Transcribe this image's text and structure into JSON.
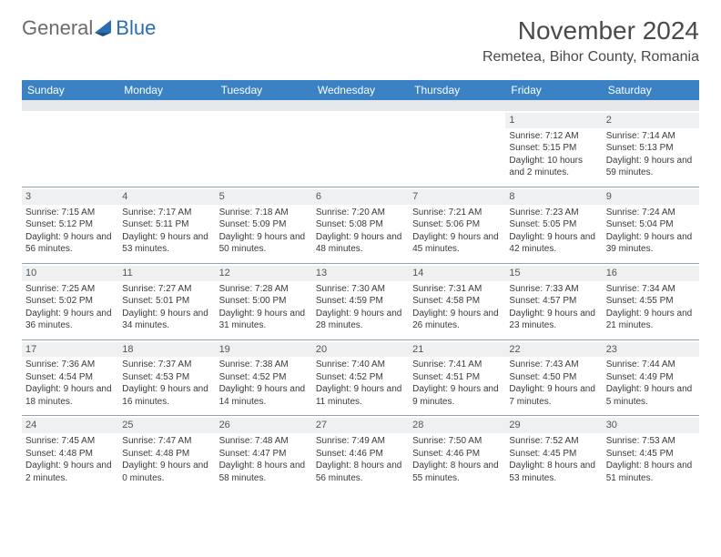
{
  "brand": {
    "part1": "General",
    "part2": "Blue",
    "color1": "#6b6b6b",
    "color2": "#2a6db0"
  },
  "title": "November 2024",
  "location": "Remetea, Bihor County, Romania",
  "header_bg": "#3b82c4",
  "header_fg": "#ffffff",
  "daynum_bg": "#eef0f2",
  "sep_color": "#8fa4b8",
  "weekdays": [
    "Sunday",
    "Monday",
    "Tuesday",
    "Wednesday",
    "Thursday",
    "Friday",
    "Saturday"
  ],
  "weeks": [
    [
      {
        "n": "",
        "lines": []
      },
      {
        "n": "",
        "lines": []
      },
      {
        "n": "",
        "lines": []
      },
      {
        "n": "",
        "lines": []
      },
      {
        "n": "",
        "lines": []
      },
      {
        "n": "1",
        "lines": [
          "Sunrise: 7:12 AM",
          "Sunset: 5:15 PM",
          "Daylight: 10 hours and 2 minutes."
        ]
      },
      {
        "n": "2",
        "lines": [
          "Sunrise: 7:14 AM",
          "Sunset: 5:13 PM",
          "Daylight: 9 hours and 59 minutes."
        ]
      }
    ],
    [
      {
        "n": "3",
        "lines": [
          "Sunrise: 7:15 AM",
          "Sunset: 5:12 PM",
          "Daylight: 9 hours and 56 minutes."
        ]
      },
      {
        "n": "4",
        "lines": [
          "Sunrise: 7:17 AM",
          "Sunset: 5:11 PM",
          "Daylight: 9 hours and 53 minutes."
        ]
      },
      {
        "n": "5",
        "lines": [
          "Sunrise: 7:18 AM",
          "Sunset: 5:09 PM",
          "Daylight: 9 hours and 50 minutes."
        ]
      },
      {
        "n": "6",
        "lines": [
          "Sunrise: 7:20 AM",
          "Sunset: 5:08 PM",
          "Daylight: 9 hours and 48 minutes."
        ]
      },
      {
        "n": "7",
        "lines": [
          "Sunrise: 7:21 AM",
          "Sunset: 5:06 PM",
          "Daylight: 9 hours and 45 minutes."
        ]
      },
      {
        "n": "8",
        "lines": [
          "Sunrise: 7:23 AM",
          "Sunset: 5:05 PM",
          "Daylight: 9 hours and 42 minutes."
        ]
      },
      {
        "n": "9",
        "lines": [
          "Sunrise: 7:24 AM",
          "Sunset: 5:04 PM",
          "Daylight: 9 hours and 39 minutes."
        ]
      }
    ],
    [
      {
        "n": "10",
        "lines": [
          "Sunrise: 7:25 AM",
          "Sunset: 5:02 PM",
          "Daylight: 9 hours and 36 minutes."
        ]
      },
      {
        "n": "11",
        "lines": [
          "Sunrise: 7:27 AM",
          "Sunset: 5:01 PM",
          "Daylight: 9 hours and 34 minutes."
        ]
      },
      {
        "n": "12",
        "lines": [
          "Sunrise: 7:28 AM",
          "Sunset: 5:00 PM",
          "Daylight: 9 hours and 31 minutes."
        ]
      },
      {
        "n": "13",
        "lines": [
          "Sunrise: 7:30 AM",
          "Sunset: 4:59 PM",
          "Daylight: 9 hours and 28 minutes."
        ]
      },
      {
        "n": "14",
        "lines": [
          "Sunrise: 7:31 AM",
          "Sunset: 4:58 PM",
          "Daylight: 9 hours and 26 minutes."
        ]
      },
      {
        "n": "15",
        "lines": [
          "Sunrise: 7:33 AM",
          "Sunset: 4:57 PM",
          "Daylight: 9 hours and 23 minutes."
        ]
      },
      {
        "n": "16",
        "lines": [
          "Sunrise: 7:34 AM",
          "Sunset: 4:55 PM",
          "Daylight: 9 hours and 21 minutes."
        ]
      }
    ],
    [
      {
        "n": "17",
        "lines": [
          "Sunrise: 7:36 AM",
          "Sunset: 4:54 PM",
          "Daylight: 9 hours and 18 minutes."
        ]
      },
      {
        "n": "18",
        "lines": [
          "Sunrise: 7:37 AM",
          "Sunset: 4:53 PM",
          "Daylight: 9 hours and 16 minutes."
        ]
      },
      {
        "n": "19",
        "lines": [
          "Sunrise: 7:38 AM",
          "Sunset: 4:52 PM",
          "Daylight: 9 hours and 14 minutes."
        ]
      },
      {
        "n": "20",
        "lines": [
          "Sunrise: 7:40 AM",
          "Sunset: 4:52 PM",
          "Daylight: 9 hours and 11 minutes."
        ]
      },
      {
        "n": "21",
        "lines": [
          "Sunrise: 7:41 AM",
          "Sunset: 4:51 PM",
          "Daylight: 9 hours and 9 minutes."
        ]
      },
      {
        "n": "22",
        "lines": [
          "Sunrise: 7:43 AM",
          "Sunset: 4:50 PM",
          "Daylight: 9 hours and 7 minutes."
        ]
      },
      {
        "n": "23",
        "lines": [
          "Sunrise: 7:44 AM",
          "Sunset: 4:49 PM",
          "Daylight: 9 hours and 5 minutes."
        ]
      }
    ],
    [
      {
        "n": "24",
        "lines": [
          "Sunrise: 7:45 AM",
          "Sunset: 4:48 PM",
          "Daylight: 9 hours and 2 minutes."
        ]
      },
      {
        "n": "25",
        "lines": [
          "Sunrise: 7:47 AM",
          "Sunset: 4:48 PM",
          "Daylight: 9 hours and 0 minutes."
        ]
      },
      {
        "n": "26",
        "lines": [
          "Sunrise: 7:48 AM",
          "Sunset: 4:47 PM",
          "Daylight: 8 hours and 58 minutes."
        ]
      },
      {
        "n": "27",
        "lines": [
          "Sunrise: 7:49 AM",
          "Sunset: 4:46 PM",
          "Daylight: 8 hours and 56 minutes."
        ]
      },
      {
        "n": "28",
        "lines": [
          "Sunrise: 7:50 AM",
          "Sunset: 4:46 PM",
          "Daylight: 8 hours and 55 minutes."
        ]
      },
      {
        "n": "29",
        "lines": [
          "Sunrise: 7:52 AM",
          "Sunset: 4:45 PM",
          "Daylight: 8 hours and 53 minutes."
        ]
      },
      {
        "n": "30",
        "lines": [
          "Sunrise: 7:53 AM",
          "Sunset: 4:45 PM",
          "Daylight: 8 hours and 51 minutes."
        ]
      }
    ]
  ]
}
